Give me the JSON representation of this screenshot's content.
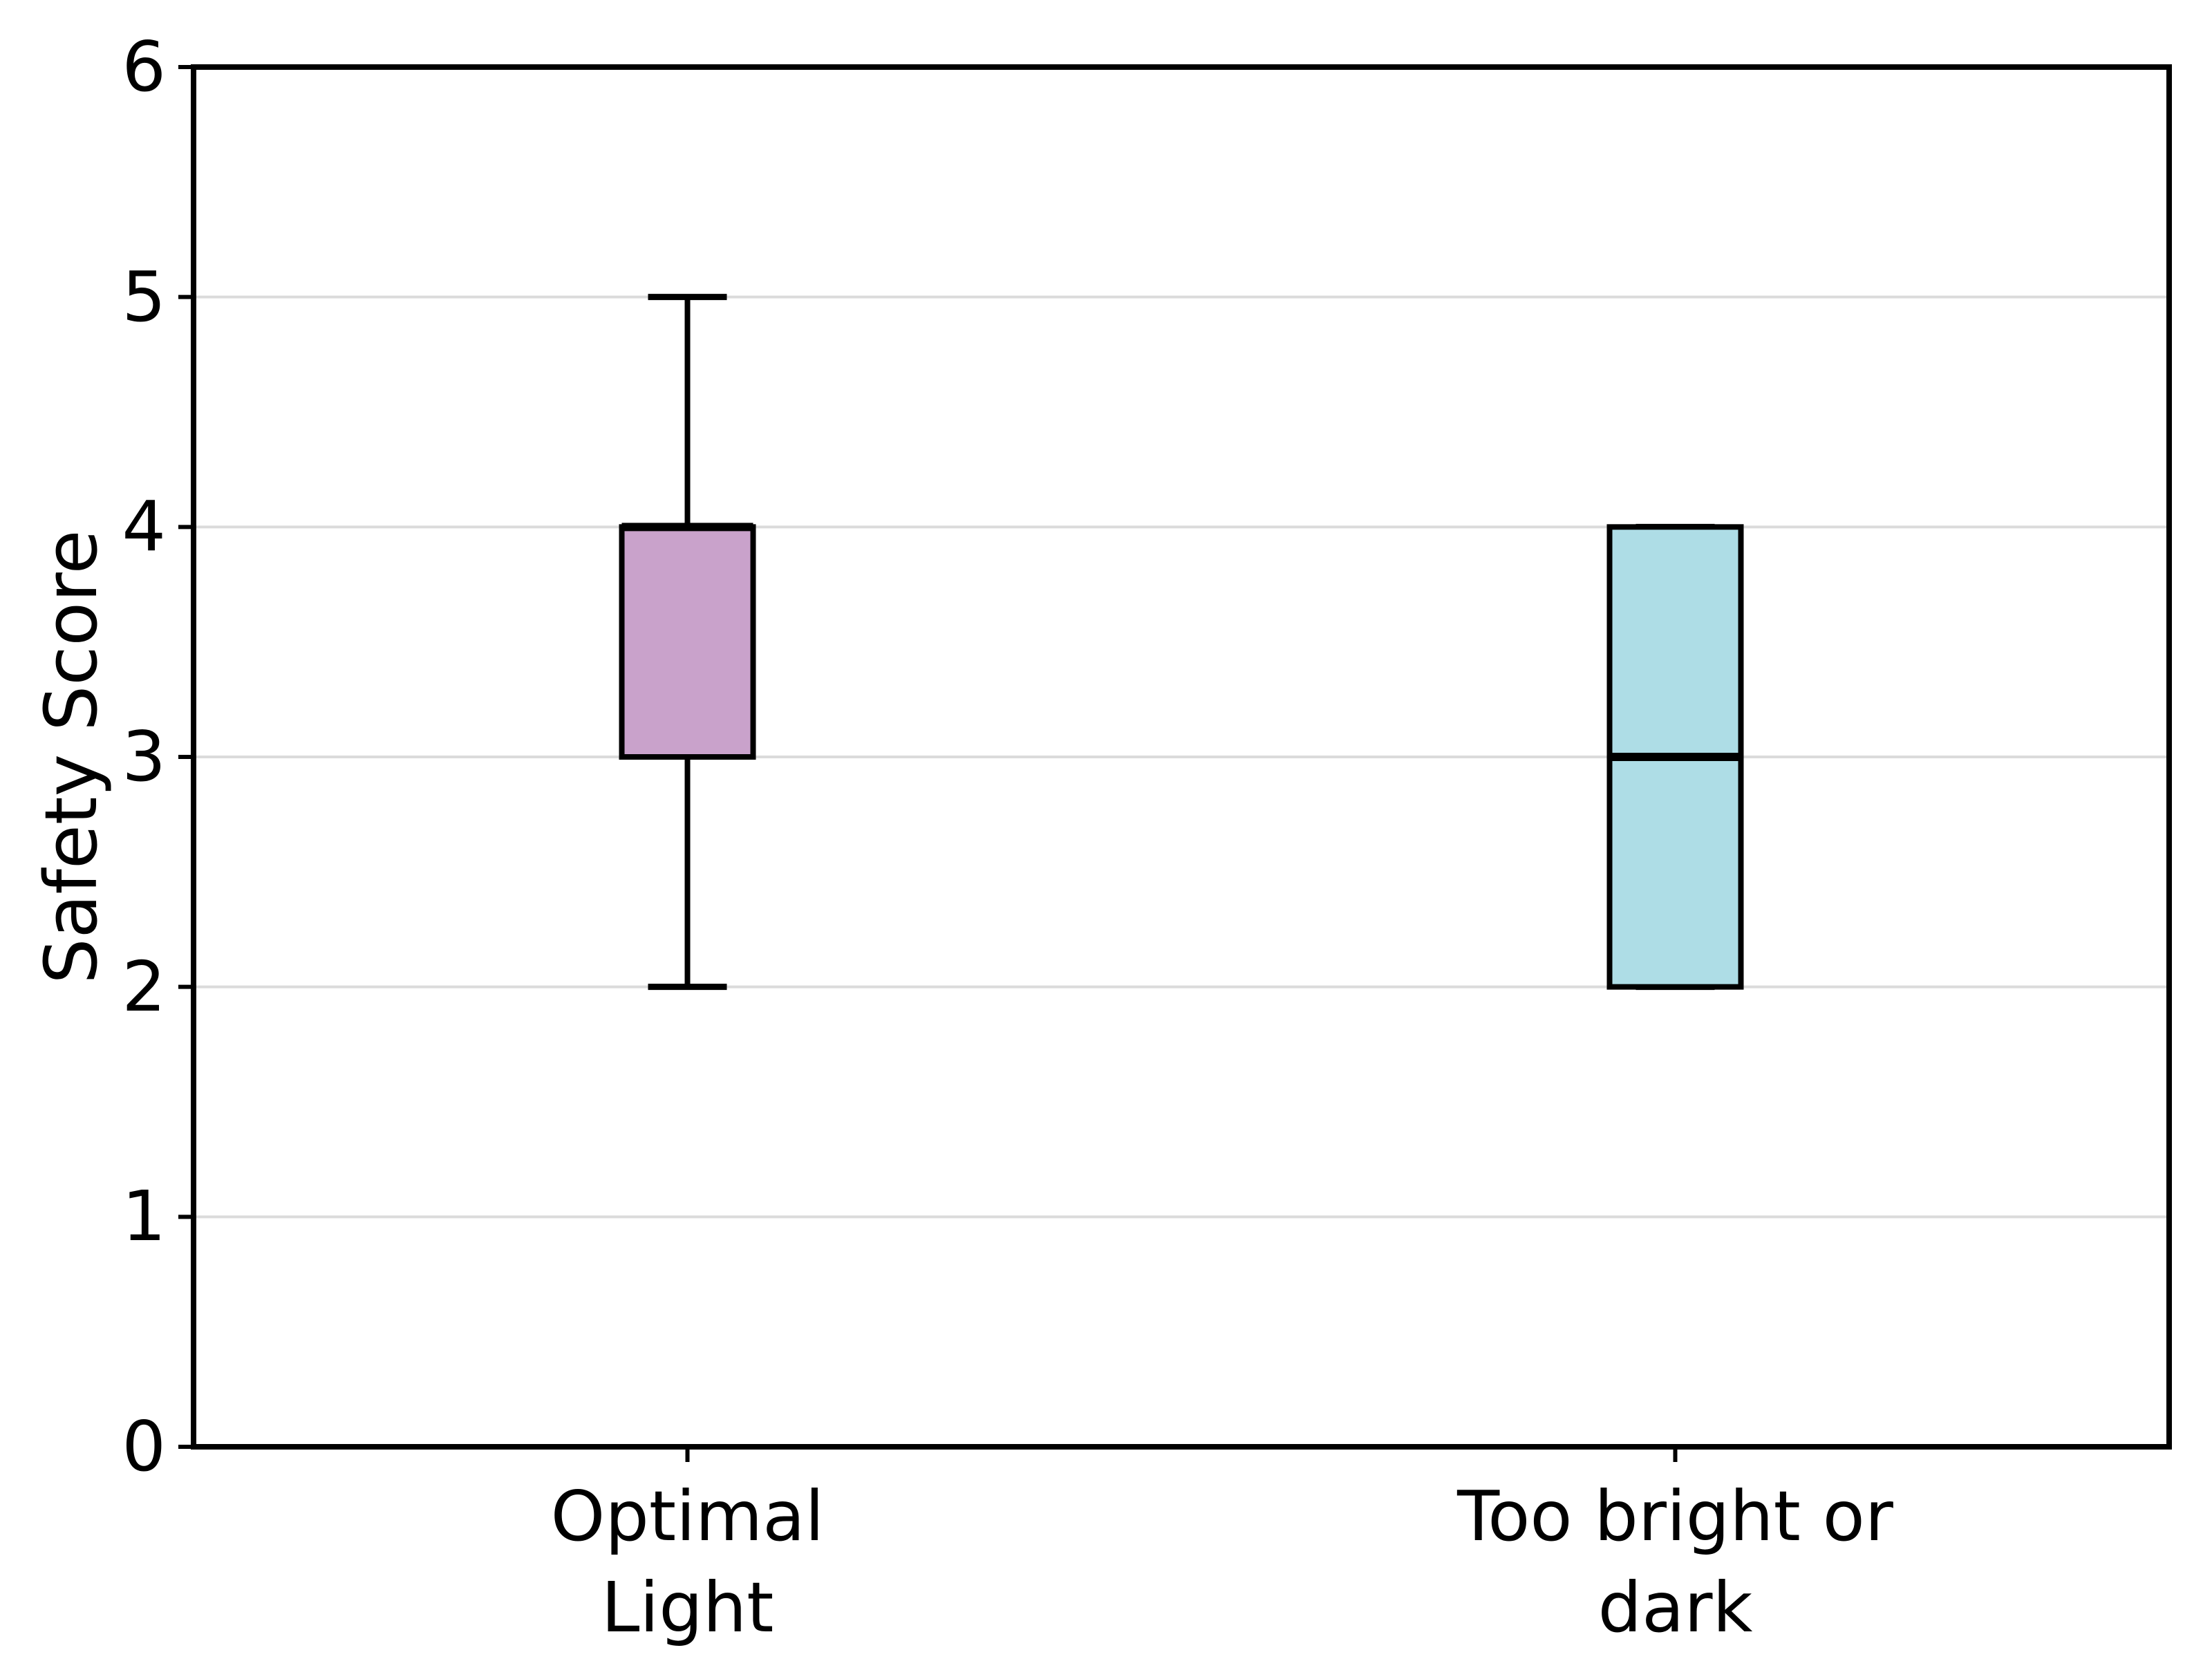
{
  "chart_data": {
    "type": "boxplot",
    "title": "",
    "xlabel": "",
    "ylabel": "Safety Score",
    "ylim": [
      0,
      6
    ],
    "yticks": [
      "0",
      "1",
      "2",
      "3",
      "4",
      "5",
      "6"
    ],
    "grid_values": [
      1,
      2,
      3,
      4,
      5
    ],
    "grid": "horizontal",
    "legend": "none",
    "categories": [
      {
        "label": "Optimal Light",
        "lines": [
          "Optimal",
          "Light"
        ]
      },
      {
        "label": "Too bright or dark",
        "lines": [
          "Too bright or",
          "dark"
        ]
      }
    ],
    "boxes": [
      {
        "name": "optimal-light",
        "whisker_low": 2,
        "q1": 3,
        "median": 4,
        "q3": 4,
        "whisker_high": 5,
        "fill_color": "#C9A2CB"
      },
      {
        "name": "too-bright-or-dark",
        "whisker_low": 2,
        "q1": 2,
        "median": 3,
        "q3": 4,
        "whisker_high": 4,
        "fill_color": "#AEDDE6"
      }
    ],
    "colors": {
      "edge": "#000000",
      "grid": "#DBDBDB",
      "background": "#FFFFFF",
      "text": "#000000"
    }
  }
}
